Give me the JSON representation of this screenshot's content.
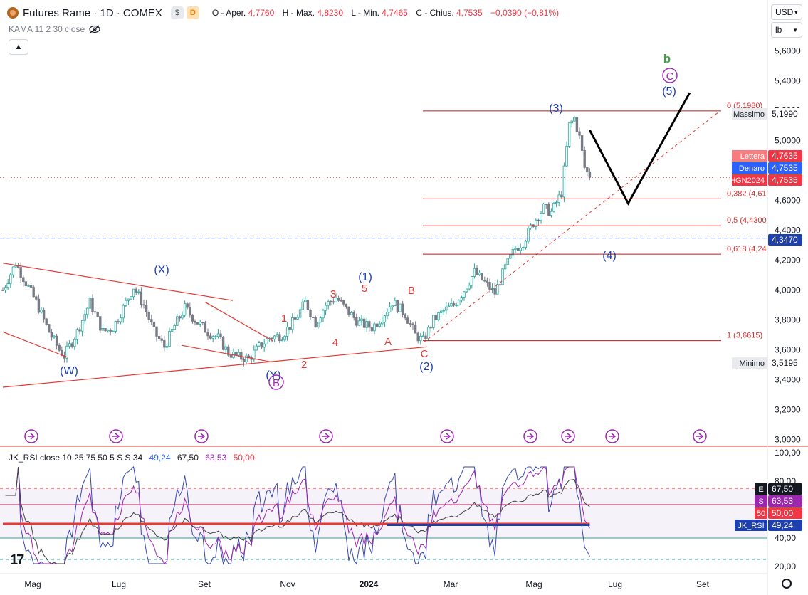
{
  "header": {
    "title": "Futures Rame · 1D · COMEX",
    "badge_gray": "$",
    "badge_orange": "D",
    "ohlc": [
      {
        "label": "O - Aper.",
        "value": "4,7760"
      },
      {
        "label": "H - Max.",
        "value": "4,8230"
      },
      {
        "label": "L - Min.",
        "value": "4,7465"
      },
      {
        "label": "C - Chius.",
        "value": "4,7535"
      },
      {
        "label": "",
        "value": "−0,0390 (−0,81%)"
      }
    ]
  },
  "indicator_label": "KAMA 11 2 30 close",
  "currency_select": "USD",
  "unit_select": "lb",
  "colors": {
    "up": "#26a69a",
    "down": "#787b86",
    "red_line": "#e53935",
    "wave_blue": "#2962ff",
    "wave_red": "#e53935",
    "wave_green": "#43a047",
    "wave_purple": "#9c27b0",
    "rsi_purple": "#9575cd"
  },
  "chart_data": [
    {
      "type": "candlestick",
      "x_ticks": [
        "Mag",
        "Lug",
        "Set",
        "Nov",
        "2024",
        "Mar",
        "Mag",
        "Lug",
        "Set"
      ],
      "y_ticks": [
        "5,6000",
        "5,4000",
        "5,2000",
        "5,0000",
        "4,8000",
        "4,6000",
        "4,4000",
        "4,2000",
        "4,0000",
        "3,8000",
        "3,6000",
        "3,4000",
        "3,2000",
        "3,0000"
      ],
      "ylim": [
        2.95,
        5.75
      ],
      "price_path": [
        [
          0,
          4.0
        ],
        [
          5,
          4.18
        ],
        [
          9,
          4.05
        ],
        [
          13,
          3.92
        ],
        [
          18,
          3.72
        ],
        [
          22,
          3.6
        ],
        [
          24,
          3.56
        ],
        [
          29,
          3.72
        ],
        [
          34,
          3.92
        ],
        [
          39,
          3.72
        ],
        [
          43,
          3.75
        ],
        [
          47,
          3.88
        ],
        [
          51,
          4.02
        ],
        [
          55,
          3.9
        ],
        [
          59,
          3.72
        ],
        [
          63,
          3.62
        ],
        [
          67,
          3.76
        ],
        [
          71,
          3.88
        ],
        [
          75,
          3.8
        ],
        [
          80,
          3.72
        ],
        [
          84,
          3.68
        ],
        [
          88,
          3.58
        ],
        [
          92,
          3.55
        ],
        [
          96,
          3.54
        ],
        [
          100,
          3.62
        ],
        [
          104,
          3.68
        ],
        [
          109,
          3.7
        ],
        [
          114,
          3.8
        ],
        [
          118,
          3.92
        ],
        [
          122,
          3.78
        ],
        [
          126,
          3.9
        ],
        [
          130,
          3.95
        ],
        [
          135,
          3.85
        ],
        [
          139,
          3.78
        ],
        [
          144,
          3.75
        ],
        [
          148,
          3.82
        ],
        [
          152,
          3.92
        ],
        [
          157,
          3.84
        ],
        [
          161,
          3.7
        ],
        [
          164,
          3.66
        ],
        [
          168,
          3.8
        ],
        [
          172,
          3.86
        ],
        [
          176,
          3.9
        ],
        [
          180,
          4.0
        ],
        [
          184,
          4.12
        ],
        [
          188,
          4.05
        ],
        [
          192,
          3.98
        ],
        [
          196,
          4.15
        ],
        [
          200,
          4.28
        ],
        [
          203,
          4.32
        ],
        [
          207,
          4.45
        ],
        [
          211,
          4.55
        ],
        [
          214,
          4.52
        ],
        [
          218,
          4.65
        ],
        [
          221,
          5.1
        ],
        [
          223,
          5.15
        ],
        [
          225,
          5.02
        ],
        [
          227,
          4.82
        ],
        [
          229,
          4.7535
        ]
      ],
      "annotations": {
        "blue": [
          "(W)",
          "(X)",
          "(Y)",
          "(1)",
          "(2)",
          "(3)",
          "(4)",
          "(5)"
        ],
        "red": [
          "1",
          "2",
          "3",
          "4",
          "5",
          "A",
          "B",
          "C"
        ],
        "purple_circled": [
          "B",
          "C"
        ],
        "green": [
          "b"
        ]
      },
      "fib_levels": [
        {
          "label": "0 (5,1980)",
          "value": 5.198
        },
        {
          "label": "0,382 (4,61",
          "value": 4.61
        },
        {
          "label": "0,5 (4,4300",
          "value": 4.43
        },
        {
          "label": "0,618 (4,24",
          "value": 4.24
        },
        {
          "label": "1 (3,6615)",
          "value": 3.6615
        }
      ],
      "price_labels": [
        {
          "text": "Massimo",
          "value": "5,1990"
        },
        {
          "text": "Lettera",
          "value": "4,7635"
        },
        {
          "text": "Denaro",
          "value": "4,7535"
        },
        {
          "text": "HGN2024",
          "value": "4,7535"
        },
        {
          "text": "",
          "value": "4,3470"
        },
        {
          "text": "Minimo",
          "value": "3,5195"
        }
      ],
      "projection": [
        [
          229,
          5.07
        ],
        [
          244,
          4.58
        ],
        [
          268,
          5.32
        ]
      ]
    },
    {
      "type": "line",
      "title": "JK_RSI close 10 25 75 50 5 S S 34",
      "values_label": [
        "49,24",
        "67,50",
        "63,53",
        "50,00"
      ],
      "y_ticks": [
        "100,00",
        "80,00",
        "60,00",
        "40,00",
        "20,00"
      ],
      "ylim": [
        15,
        102
      ],
      "levels": {
        "upper": 75,
        "middle": 50,
        "lower": 40,
        "bottom": 25
      },
      "side_labels": [
        {
          "tag": "E",
          "value": "67,50"
        },
        {
          "tag": "S",
          "value": "63,53"
        },
        {
          "tag": "50",
          "value": "50,00"
        },
        {
          "tag": "JK_RSI",
          "value": "49,24"
        }
      ]
    }
  ]
}
